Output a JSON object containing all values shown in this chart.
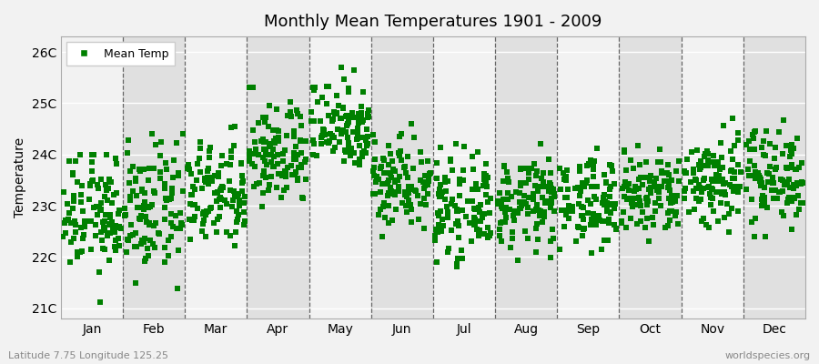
{
  "title": "Monthly Mean Temperatures 1901 - 2009",
  "ylabel": "Temperature",
  "xlabel_labels": [
    "Jan",
    "Feb",
    "Mar",
    "Apr",
    "May",
    "Jun",
    "Jul",
    "Aug",
    "Sep",
    "Oct",
    "Nov",
    "Dec"
  ],
  "ytick_labels": [
    "21C",
    "22C",
    "23C",
    "24C",
    "25C",
    "26C"
  ],
  "ytick_values": [
    21,
    22,
    23,
    24,
    25,
    26
  ],
  "ylim": [
    20.8,
    26.3
  ],
  "bg_light": "#f2f2f2",
  "bg_dark": "#e0e0e0",
  "dot_color": "#008000",
  "dot_size": 18,
  "legend_label": "Mean Temp",
  "footer_left": "Latitude 7.75 Longitude 125.25",
  "footer_right": "worldspecies.org",
  "n_years": 109,
  "month_params": [
    [
      0.5,
      22.85,
      0.58,
      21.0,
      24.0
    ],
    [
      1.5,
      22.9,
      0.62,
      21.0,
      24.4
    ],
    [
      2.5,
      23.2,
      0.52,
      21.9,
      24.6
    ],
    [
      3.5,
      24.0,
      0.5,
      22.8,
      25.3
    ],
    [
      4.5,
      24.6,
      0.45,
      23.8,
      25.7
    ],
    [
      5.5,
      23.5,
      0.45,
      21.8,
      24.7
    ],
    [
      6.5,
      22.95,
      0.45,
      21.5,
      24.2
    ],
    [
      7.5,
      23.05,
      0.42,
      21.7,
      24.2
    ],
    [
      8.5,
      23.1,
      0.42,
      21.7,
      24.3
    ],
    [
      9.5,
      23.2,
      0.43,
      22.0,
      24.4
    ],
    [
      10.5,
      23.5,
      0.48,
      22.3,
      24.9
    ],
    [
      11.5,
      23.6,
      0.48,
      22.4,
      24.7
    ]
  ]
}
